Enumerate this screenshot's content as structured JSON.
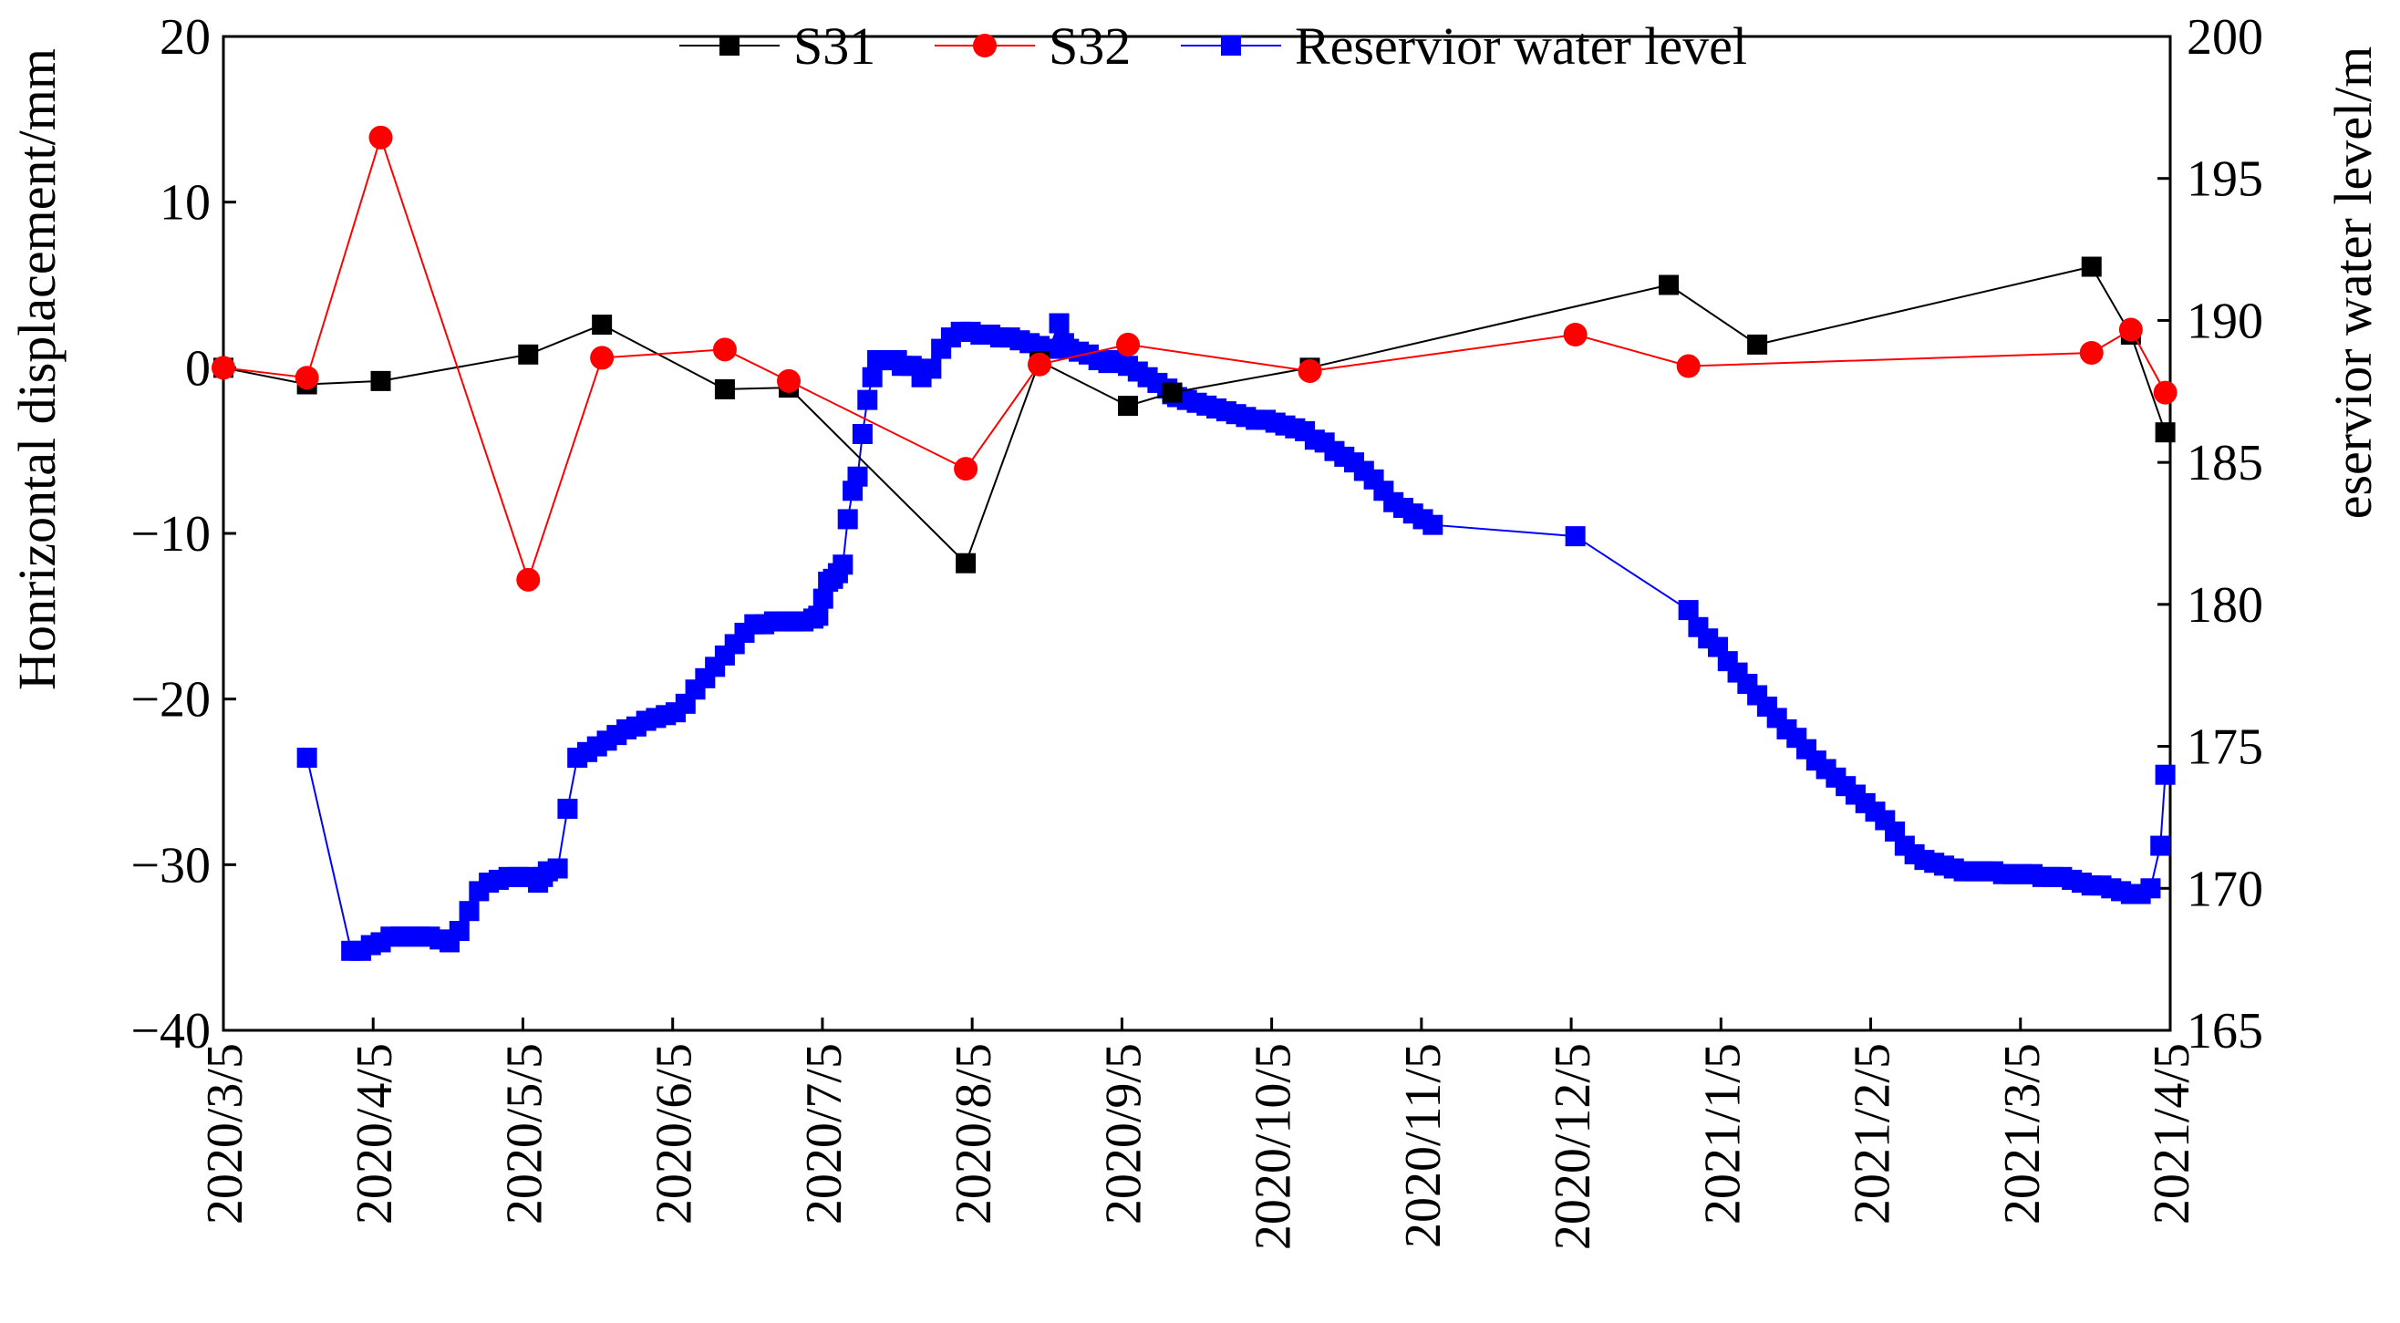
{
  "chart_data": {
    "type": "line",
    "title": "",
    "xlabel": "",
    "ylabel": "Honrizontal displacement/mm",
    "y2label": "eservior water level/m",
    "x_tick_labels": [
      "2020/3/5",
      "2020/4/5",
      "2020/5/5",
      "2020/6/5",
      "2020/7/5",
      "2020/8/5",
      "2020/9/5",
      "2020/10/5",
      "2020/11/5",
      "2020/12/5",
      "2021/1/5",
      "2021/2/5",
      "2021/3/5",
      "2021/4/5"
    ],
    "xlim_days": [
      0,
      396
    ],
    "ylim": [
      -40,
      20
    ],
    "yticks": [
      "20",
      "10",
      "0",
      "−10",
      "−20",
      "−30",
      "−40"
    ],
    "y2lim": [
      165,
      200
    ],
    "y2ticks": [
      "200",
      "195",
      "190",
      "185",
      "180",
      "175",
      "170",
      "165"
    ],
    "grid": false,
    "legend_position": "top",
    "series": [
      {
        "name": "S31",
        "axis": "left",
        "color": "#000000",
        "marker": "square",
        "x": [
          0,
          17,
          32,
          62,
          77,
          102,
          115,
          151,
          166,
          184,
          193,
          221,
          294,
          312,
          380,
          388,
          395
        ],
        "y": [
          0,
          -1,
          -0.8,
          0.8,
          2.6,
          -1.3,
          -1.2,
          -11.8,
          0.4,
          -2.3,
          -1.5,
          0,
          5,
          1.4,
          6.1,
          2,
          -3.9
        ]
      },
      {
        "name": "S32",
        "axis": "left",
        "color": "#ff0000",
        "marker": "circle",
        "x": [
          0,
          17,
          32,
          62,
          77,
          102,
          115,
          151,
          166,
          184,
          221,
          275,
          298,
          380,
          388,
          395
        ],
        "y": [
          0,
          -0.6,
          13.9,
          -12.8,
          0.6,
          1.1,
          -0.8,
          -6.1,
          0.2,
          1.4,
          -0.2,
          2,
          0.1,
          0.9,
          2.3,
          -1.5
        ]
      },
      {
        "name": "Reservior water level",
        "axis": "right",
        "color": "#0000ff",
        "marker": "square",
        "x": [
          17,
          26,
          28,
          30,
          32,
          34,
          36,
          38,
          40,
          42,
          44,
          46,
          48,
          50,
          52,
          54,
          56,
          58,
          60,
          62,
          64,
          65,
          66,
          68,
          70,
          72,
          74,
          76,
          78,
          80,
          82,
          84,
          86,
          88,
          90,
          92,
          94,
          96,
          98,
          100,
          102,
          104,
          106,
          108,
          110,
          112,
          114,
          116,
          118,
          120,
          121,
          122,
          123,
          124,
          125,
          126,
          127,
          128,
          129,
          130,
          131,
          132,
          133,
          134,
          135,
          136,
          137,
          138,
          140,
          142,
          144,
          146,
          148,
          150,
          152,
          154,
          156,
          158,
          160,
          162,
          164,
          166,
          168,
          170,
          171,
          172,
          174,
          176,
          178,
          180,
          182,
          184,
          186,
          188,
          190,
          192,
          193,
          194,
          196,
          198,
          200,
          202,
          204,
          206,
          208,
          210,
          212,
          214,
          216,
          218,
          220,
          222,
          224,
          226,
          228,
          230,
          232,
          234,
          236,
          238,
          240,
          242,
          244,
          246,
          275,
          298,
          300,
          302,
          304,
          306,
          308,
          310,
          312,
          314,
          316,
          318,
          320,
          322,
          324,
          326,
          328,
          330,
          332,
          334,
          336,
          338,
          340,
          342,
          344,
          346,
          348,
          350,
          352,
          354,
          356,
          358,
          360,
          362,
          364,
          366,
          368,
          370,
          372,
          374,
          376,
          378,
          380,
          382,
          384,
          386,
          388,
          390,
          392,
          394,
          395
        ],
        "y": [
          174.6,
          167.8,
          167.8,
          168,
          168.1,
          168.3,
          168.3,
          168.3,
          168.3,
          168.3,
          168.2,
          168.1,
          168.5,
          169.2,
          169.9,
          170.2,
          170.3,
          170.4,
          170.4,
          170.4,
          170.2,
          170.4,
          170.6,
          170.7,
          172.8,
          174.6,
          174.8,
          175,
          175.2,
          175.4,
          175.6,
          175.7,
          175.9,
          176,
          176.1,
          176.2,
          176.5,
          177,
          177.4,
          177.8,
          178.2,
          178.6,
          179,
          179.3,
          179.3,
          179.4,
          179.4,
          179.4,
          179.4,
          179.5,
          179.6,
          180.2,
          180.8,
          180.9,
          181.1,
          181.4,
          183,
          184,
          184.5,
          186,
          187.2,
          188,
          188.6,
          188.6,
          188.6,
          188.6,
          188.6,
          188.4,
          188.4,
          188,
          188.3,
          189,
          189.4,
          189.6,
          189.6,
          189.5,
          189.5,
          189.4,
          189.4,
          189.3,
          189.2,
          189.1,
          189,
          189.9,
          189.2,
          189,
          188.9,
          188.8,
          188.6,
          188.5,
          188.6,
          188.4,
          188.2,
          188,
          187.8,
          187.6,
          187.4,
          187.3,
          187.2,
          187.1,
          187,
          186.9,
          186.8,
          186.7,
          186.6,
          186.5,
          186.5,
          186.4,
          186.3,
          186.2,
          186.1,
          185.8,
          185.7,
          185.4,
          185.2,
          185,
          184.7,
          184.4,
          184,
          183.6,
          183.4,
          183.2,
          183,
          182.8,
          182.4,
          179.8,
          179.2,
          178.8,
          178.5,
          178,
          177.6,
          177.2,
          176.8,
          176.4,
          176,
          175.6,
          175.3,
          174.9,
          174.5,
          174.2,
          173.9,
          173.6,
          173.3,
          173,
          172.7,
          172.4,
          172,
          171.5,
          171.2,
          171,
          170.9,
          170.8,
          170.7,
          170.6,
          170.6,
          170.6,
          170.6,
          170.5,
          170.5,
          170.5,
          170.5,
          170.4,
          170.4,
          170.4,
          170.3,
          170.2,
          170.1,
          170.1,
          170,
          169.9,
          169.8,
          169.8,
          170,
          171.5,
          174
        ]
      }
    ]
  }
}
